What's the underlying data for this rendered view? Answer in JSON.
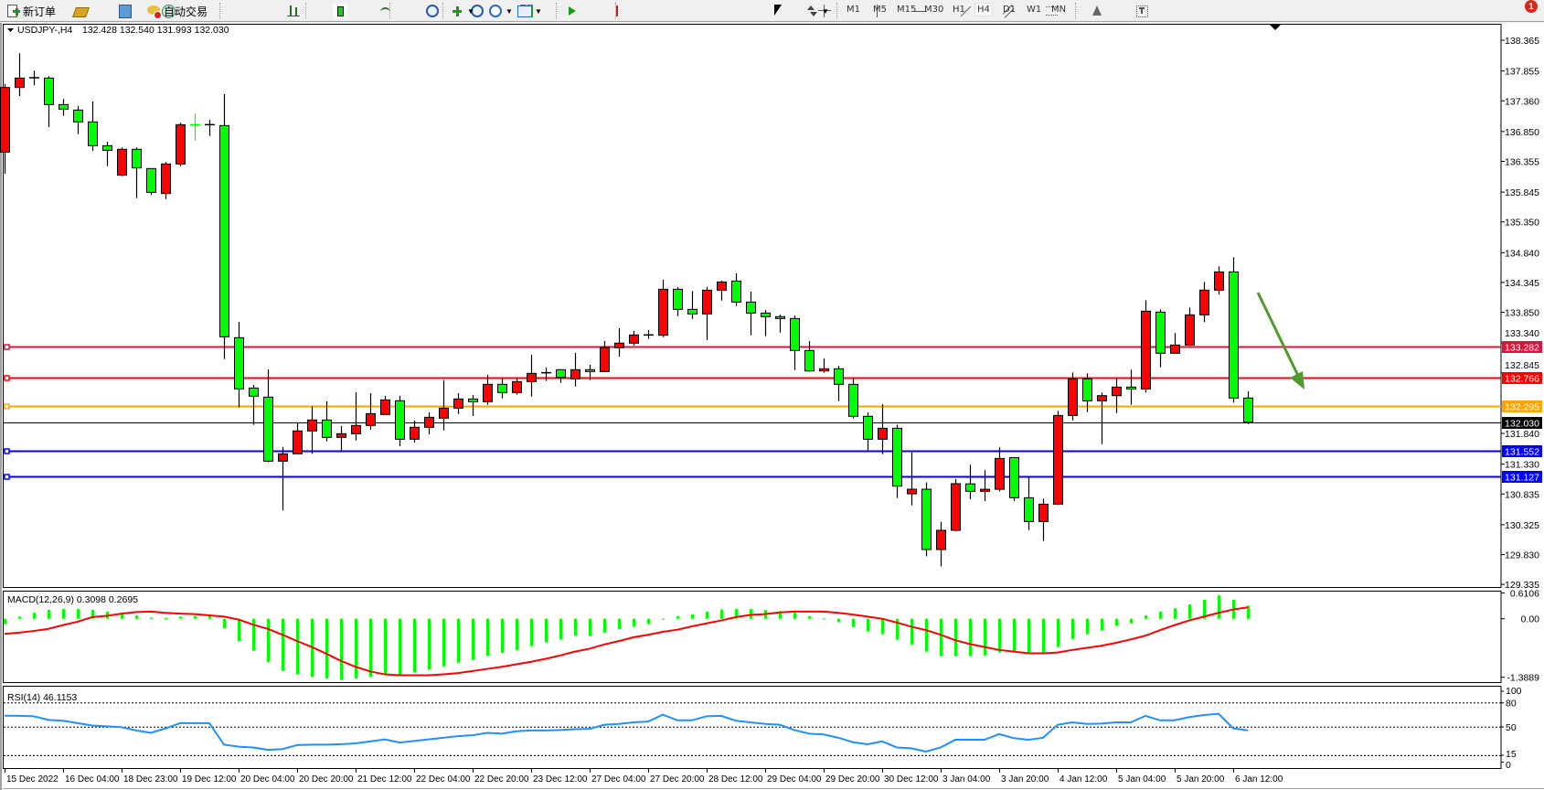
{
  "toolbar": {
    "new_order_label": "新订单",
    "auto_trading_label": "自动交易",
    "icons": [
      "new-order-icon",
      "market-watch-icon",
      "navigator-icon",
      "signals-icon",
      "auto-trading-icon",
      "bar-chart-icon",
      "candlestick-icon",
      "line-chart-icon",
      "zoom-in-icon",
      "zoom-out-icon",
      "tile-windows-icon",
      "autoscroll-icon",
      "chart-shift-icon",
      "indicators-icon",
      "periods-icon",
      "templates-icon",
      "cursor-icon",
      "crosshair-icon",
      "vertical-line-icon",
      "horizontal-line-icon",
      "trendline-icon",
      "equidistant-channel-icon",
      "fibonacci-icon",
      "text-icon",
      "text-label-icon",
      "arrows-icon",
      "search-icon",
      "notifications-icon"
    ],
    "timeframes": [
      "M1",
      "M5",
      "M15",
      "M30",
      "H1",
      "H4",
      "D1",
      "W1",
      "MN"
    ],
    "active_timeframe": "H4",
    "notification_count": "1"
  },
  "chart": {
    "symbol_header": "USDJPY-,H4",
    "ohlc_header": "132.428 132.540 131.993 132.030",
    "price_ticks": [
      "138.365",
      "137.855",
      "137.360",
      "136.850",
      "136.355",
      "135.845",
      "135.350",
      "134.840",
      "134.345",
      "133.850",
      "133.340",
      "132.845",
      "131.840",
      "131.330",
      "130.835",
      "130.325",
      "129.830",
      "129.335"
    ],
    "current_price": "132.030",
    "levels": [
      {
        "price": "133.282",
        "color": "#dc143c"
      },
      {
        "price": "132.766",
        "color": "#ff0000"
      },
      {
        "price": "132.295",
        "color": "#ffa500"
      },
      {
        "price": "131.552",
        "color": "#0000ff"
      },
      {
        "price": "131.127",
        "color": "#0000ff"
      }
    ],
    "bull_color": "#ff0000",
    "bear_color": "#00ff00",
    "arrow_color": "#4f9a2c",
    "time_labels": [
      "15 Dec 2022",
      "16 Dec 04:00",
      "18 Dec 23:00",
      "19 Dec 12:00",
      "20 Dec 04:00",
      "20 Dec 20:00",
      "21 Dec 12:00",
      "22 Dec 04:00",
      "22 Dec 20:00",
      "23 Dec 12:00",
      "27 Dec 04:00",
      "27 Dec 20:00",
      "28 Dec 12:00",
      "29 Dec 04:00",
      "29 Dec 20:00",
      "30 Dec 12:00",
      "3 Jan 04:00",
      "3 Jan 20:00",
      "4 Jan 12:00",
      "5 Jan 04:00",
      "5 Jan 20:00",
      "6 Jan 12:00"
    ],
    "macd": {
      "label": "MACD(12,26,9) 0.3098 0.2695",
      "axis_labels": [
        "0.6106",
        "0.00",
        "-1.3889"
      ]
    },
    "rsi": {
      "label": "RSI(14) 46.1153",
      "axis_labels": [
        "100",
        "80",
        "50",
        "15",
        "0"
      ]
    }
  },
  "chart_data": [
    {
      "type": "candlestick",
      "ylim": [
        129.335,
        138.365
      ],
      "ohlc": [
        [
          136.509,
          137.642,
          136.15,
          137.581
        ],
        [
          137.581,
          138.148,
          137.44,
          137.738
        ],
        [
          137.743,
          137.86,
          137.617,
          137.743
        ],
        [
          137.738,
          137.769,
          136.924,
          137.298
        ],
        [
          137.298,
          137.389,
          137.111,
          137.222
        ],
        [
          137.207,
          137.273,
          136.808,
          137.01
        ],
        [
          137.01,
          137.349,
          136.529,
          136.615
        ],
        [
          136.615,
          136.681,
          136.276,
          136.539
        ],
        [
          136.125,
          136.585,
          136.11,
          136.555
        ],
        [
          136.555,
          136.585,
          135.745,
          136.246
        ],
        [
          136.236,
          136.236,
          135.796,
          135.841
        ],
        [
          135.821,
          136.342,
          135.73,
          136.312
        ],
        [
          136.312,
          136.995,
          136.276,
          136.964
        ],
        [
          136.964,
          137.146,
          136.701,
          136.963
        ],
        [
          136.964,
          137.045,
          136.777,
          136.964
        ],
        [
          136.949,
          137.47,
          133.075,
          133.444
        ],
        [
          133.429,
          133.692,
          132.27,
          132.579
        ],
        [
          132.594,
          132.645,
          131.982,
          132.458
        ],
        [
          132.442,
          132.903,
          131.36,
          131.38
        ],
        [
          131.38,
          131.613,
          130.561,
          131.502
        ],
        [
          131.502,
          132.007,
          131.502,
          131.881
        ],
        [
          131.881,
          132.291,
          131.502,
          132.063
        ],
        [
          132.063,
          132.372,
          131.709,
          131.775
        ],
        [
          131.775,
          131.962,
          131.562,
          131.835
        ],
        [
          131.835,
          132.523,
          131.724,
          131.972
        ],
        [
          131.972,
          132.508,
          131.901,
          132.169
        ],
        [
          132.154,
          132.463,
          132.154,
          132.397
        ],
        [
          132.382,
          132.463,
          131.628,
          131.744
        ],
        [
          131.744,
          132.053,
          131.689,
          131.942
        ],
        [
          131.942,
          132.189,
          131.825,
          132.108
        ],
        [
          132.093,
          132.726,
          131.891,
          132.26
        ],
        [
          132.26,
          132.508,
          132.164,
          132.412
        ],
        [
          132.412,
          132.478,
          132.129,
          132.366
        ],
        [
          132.366,
          132.812,
          132.316,
          132.655
        ],
        [
          132.655,
          132.761,
          132.422,
          132.518
        ],
        [
          132.518,
          132.761,
          132.483,
          132.7
        ],
        [
          132.7,
          133.145,
          132.452,
          132.837
        ],
        [
          132.847,
          132.933,
          132.71,
          132.847
        ],
        [
          132.898,
          132.898,
          132.68,
          132.771
        ],
        [
          132.746,
          133.176,
          132.619,
          132.898
        ],
        [
          132.898,
          132.979,
          132.726,
          132.867
        ],
        [
          132.867,
          133.373,
          132.867,
          133.267
        ],
        [
          133.262,
          133.585,
          133.115,
          133.338
        ],
        [
          133.338,
          133.54,
          133.297,
          133.474
        ],
        [
          133.474,
          133.555,
          133.408,
          133.474
        ],
        [
          133.469,
          134.39,
          133.439,
          134.233
        ],
        [
          134.233,
          134.268,
          133.788,
          133.899
        ],
        [
          133.899,
          134.202,
          133.742,
          133.823
        ],
        [
          133.823,
          134.268,
          133.388,
          134.217
        ],
        [
          134.217,
          134.374,
          134.045,
          134.354
        ],
        [
          134.369,
          134.496,
          133.954,
          134.02
        ],
        [
          134.02,
          134.192,
          133.469,
          133.838
        ],
        [
          133.838,
          133.889,
          133.454,
          133.778
        ],
        [
          133.778,
          133.813,
          133.514,
          133.747
        ],
        [
          133.747,
          133.798,
          132.892,
          133.216
        ],
        [
          133.216,
          133.373,
          132.862,
          132.877
        ],
        [
          132.877,
          133.085,
          132.847,
          132.913
        ],
        [
          132.913,
          132.964,
          132.377,
          132.655
        ],
        [
          132.655,
          132.761,
          132.088,
          132.124
        ],
        [
          132.124,
          132.189,
          131.562,
          131.744
        ],
        [
          131.744,
          132.326,
          131.496,
          131.926
        ],
        [
          131.926,
          131.987,
          130.768,
          130.965
        ],
        [
          130.838,
          131.526,
          130.646,
          130.914
        ],
        [
          130.914,
          131.026,
          129.801,
          129.913
        ],
        [
          129.913,
          130.373,
          129.633,
          130.232
        ],
        [
          130.232,
          131.084,
          130.217,
          131.006
        ],
        [
          131.003,
          131.321,
          130.747,
          130.879
        ],
        [
          130.879,
          131.23,
          130.716,
          130.913
        ],
        [
          130.913,
          131.609,
          130.879,
          131.425
        ],
        [
          131.44,
          131.44,
          130.716,
          130.773
        ],
        [
          130.773,
          131.124,
          130.237,
          130.378
        ],
        [
          130.378,
          130.757,
          130.055,
          130.666
        ],
        [
          130.666,
          132.214,
          130.651,
          132.138
        ],
        [
          132.138,
          132.851,
          132.057,
          132.745
        ],
        [
          132.745,
          132.836,
          132.194,
          132.381
        ],
        [
          132.381,
          132.518,
          131.663,
          132.467
        ],
        [
          132.467,
          132.761,
          132.179,
          132.609
        ],
        [
          132.609,
          132.898,
          132.316,
          132.578
        ],
        [
          132.578,
          134.051,
          132.518,
          133.869
        ],
        [
          133.854,
          133.899,
          132.938,
          133.171
        ],
        [
          133.171,
          133.505,
          133.171,
          133.307
        ],
        [
          133.307,
          133.929,
          133.307,
          133.808
        ],
        [
          133.808,
          134.354,
          133.687,
          134.218
        ],
        [
          134.218,
          134.612,
          134.142,
          134.521
        ],
        [
          134.521,
          134.764,
          132.351,
          132.427
        ],
        [
          132.428,
          132.54,
          131.993,
          132.03
        ]
      ]
    },
    {
      "type": "bar",
      "ylim": [
        -1.3889,
        0.6106
      ],
      "macd": [
        -0.13,
        0.05,
        0.14,
        0.21,
        0.23,
        0.23,
        0.21,
        0.17,
        0.12,
        0.08,
        0.03,
        0.015,
        0.05,
        0.07,
        0.07,
        -0.22,
        -0.53,
        -0.76,
        -1.03,
        -1.24,
        -1.32,
        -1.38,
        -1.42,
        -1.45,
        -1.42,
        -1.38,
        -1.32,
        -1.32,
        -1.27,
        -1.21,
        -1.13,
        -1.04,
        -0.98,
        -0.88,
        -0.81,
        -0.74,
        -0.65,
        -0.56,
        -0.49,
        -0.4,
        -0.41,
        -0.33,
        -0.25,
        -0.19,
        -0.13,
        -0.02,
        0.06,
        0.1,
        0.17,
        0.22,
        0.23,
        0.23,
        0.21,
        0.18,
        0.14,
        0.06,
        0.005,
        -0.08,
        -0.2,
        -0.3,
        -0.37,
        -0.5,
        -0.61,
        -0.78,
        -0.89,
        -0.89,
        -0.89,
        -0.87,
        -0.8,
        -0.8,
        -0.8,
        -0.8,
        -0.67,
        -0.48,
        -0.37,
        -0.28,
        -0.17,
        -0.11,
        0.08,
        0.17,
        0.25,
        0.34,
        0.45,
        0.56,
        0.45,
        0.3098
      ],
      "signal": [
        -0.36,
        -0.33,
        -0.29,
        -0.24,
        -0.15,
        -0.07,
        0.04,
        0.07,
        0.12,
        0.16,
        0.17,
        0.14,
        0.12,
        0.11,
        0.08,
        0.05,
        -0.02,
        -0.14,
        -0.24,
        -0.38,
        -0.53,
        -0.67,
        -0.83,
        -1.0,
        -1.14,
        -1.25,
        -1.32,
        -1.34,
        -1.34,
        -1.34,
        -1.32,
        -1.29,
        -1.24,
        -1.19,
        -1.14,
        -1.08,
        -1.02,
        -0.95,
        -0.87,
        -0.78,
        -0.71,
        -0.61,
        -0.53,
        -0.44,
        -0.38,
        -0.31,
        -0.26,
        -0.18,
        -0.11,
        -0.04,
        0.04,
        0.09,
        0.11,
        0.15,
        0.17,
        0.17,
        0.17,
        0.14,
        0.1,
        0.05,
        0.0,
        -0.09,
        -0.19,
        -0.27,
        -0.38,
        -0.51,
        -0.6,
        -0.67,
        -0.74,
        -0.78,
        -0.82,
        -0.82,
        -0.8,
        -0.74,
        -0.69,
        -0.64,
        -0.57,
        -0.49,
        -0.4,
        -0.27,
        -0.15,
        -0.04,
        0.05,
        0.14,
        0.22,
        0.2695
      ],
      "histogram_color": "#00ff00",
      "signal_color": "#ff0000"
    },
    {
      "type": "line",
      "ylim": [
        0,
        100
      ],
      "levels": [
        80,
        50,
        15
      ],
      "values": [
        64.2,
        64,
        63.5,
        59,
        58,
        55,
        52,
        51,
        50,
        46,
        43,
        48.5,
        55,
        55,
        55,
        28.5,
        26,
        25,
        22,
        23,
        28,
        28.5,
        28.5,
        29,
        30,
        32.5,
        35,
        31,
        33,
        35,
        37,
        39,
        40,
        43,
        42,
        45,
        46,
        46,
        46.5,
        47.5,
        48,
        53,
        54,
        56,
        57,
        65.5,
        58.5,
        58.5,
        63.5,
        64,
        58,
        56,
        54,
        53,
        46.5,
        42,
        41,
        37,
        31.5,
        29,
        32.5,
        25,
        24,
        20,
        25,
        34.5,
        34.5,
        34.5,
        41.5,
        36.5,
        34.5,
        37,
        53,
        56,
        54,
        54.5,
        56,
        56,
        64,
        58.5,
        58.5,
        62.5,
        65,
        66.5,
        48.5,
        46.1153
      ],
      "color": "#1e90ff"
    }
  ]
}
